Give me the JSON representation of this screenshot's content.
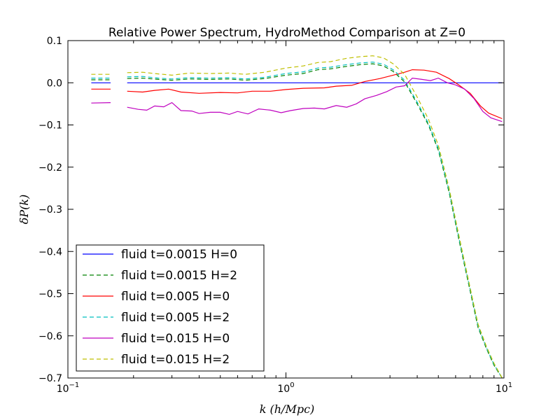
{
  "chart_data": {
    "type": "line",
    "title": "Relative Power Spectrum, HydroMethod Comparison at Z=0",
    "xlabel": "k (h/Mpc)",
    "ylabel": "δP(k)",
    "xscale": "log",
    "xlim": [
      0.1,
      10
    ],
    "ylim": [
      -0.7,
      0.1
    ],
    "x_ticks": [
      {
        "value": 0.1,
        "base": "10",
        "exp": "−1"
      },
      {
        "value": 1,
        "base": "10",
        "exp": "0"
      },
      {
        "value": 10,
        "base": "10",
        "exp": "1"
      }
    ],
    "y_ticks": [
      {
        "value": 0.1,
        "label": "0.1"
      },
      {
        "value": 0.0,
        "label": "0.0"
      },
      {
        "value": -0.1,
        "label": "−0.1"
      },
      {
        "value": -0.2,
        "label": "−0.2"
      },
      {
        "value": -0.3,
        "label": "−0.3"
      },
      {
        "value": -0.4,
        "label": "−0.4"
      },
      {
        "value": -0.5,
        "label": "−0.5"
      },
      {
        "value": -0.6,
        "label": "−0.6"
      },
      {
        "value": -0.7,
        "label": "−0.7"
      }
    ],
    "grid": false,
    "legend_position": "lower-left",
    "series": [
      {
        "name": "fluid t=0.0015 H=0",
        "color": "#0000ff",
        "dash": "solid",
        "segments": [
          [
            [
              0.128,
              0.0
            ],
            [
              0.157,
              0.0
            ]
          ],
          [
            [
              0.187,
              0.0
            ],
            [
              0.5,
              0.0
            ],
            [
              1.0,
              0.0
            ],
            [
              2.0,
              0.0
            ],
            [
              4.0,
              0.0
            ],
            [
              7.0,
              0.0
            ],
            [
              9.8,
              0.0
            ]
          ]
        ]
      },
      {
        "name": "fluid t=0.0015 H=2",
        "color": "#008000",
        "dash": "dashed",
        "segments": [
          [
            [
              0.128,
              0.007
            ],
            [
              0.157,
              0.007
            ]
          ],
          [
            [
              0.187,
              0.01
            ],
            [
              0.22,
              0.011
            ],
            [
              0.26,
              0.008
            ],
            [
              0.3,
              0.006
            ],
            [
              0.36,
              0.009
            ],
            [
              0.45,
              0.008
            ],
            [
              0.55,
              0.009
            ],
            [
              0.65,
              0.006
            ],
            [
              0.8,
              0.01
            ],
            [
              1.0,
              0.018
            ],
            [
              1.2,
              0.022
            ],
            [
              1.4,
              0.031
            ],
            [
              1.6,
              0.033
            ],
            [
              1.9,
              0.039
            ],
            [
              2.2,
              0.043
            ],
            [
              2.5,
              0.045
            ],
            [
              2.8,
              0.04
            ],
            [
              3.1,
              0.027
            ],
            [
              3.5,
              0.002
            ],
            [
              4.0,
              -0.05
            ],
            [
              4.5,
              -0.1
            ],
            [
              5.0,
              -0.16
            ],
            [
              5.6,
              -0.26
            ],
            [
              6.2,
              -0.37
            ],
            [
              6.9,
              -0.48
            ],
            [
              7.6,
              -0.58
            ],
            [
              8.3,
              -0.63
            ],
            [
              9.0,
              -0.67
            ],
            [
              9.8,
              -0.7
            ]
          ]
        ]
      },
      {
        "name": "fluid t=0.005 H=0",
        "color": "#ff0000",
        "dash": "solid",
        "segments": [
          [
            [
              0.128,
              -0.015
            ],
            [
              0.157,
              -0.015
            ]
          ],
          [
            [
              0.187,
              -0.02
            ],
            [
              0.22,
              -0.022
            ],
            [
              0.25,
              -0.018
            ],
            [
              0.29,
              -0.015
            ],
            [
              0.33,
              -0.022
            ],
            [
              0.4,
              -0.025
            ],
            [
              0.5,
              -0.023
            ],
            [
              0.6,
              -0.024
            ],
            [
              0.7,
              -0.02
            ],
            [
              0.85,
              -0.02
            ],
            [
              1.0,
              -0.016
            ],
            [
              1.2,
              -0.013
            ],
            [
              1.5,
              -0.012
            ],
            [
              1.7,
              -0.008
            ],
            [
              2.0,
              -0.006
            ],
            [
              2.3,
              0.003
            ],
            [
              2.7,
              0.01
            ],
            [
              3.1,
              0.018
            ],
            [
              3.5,
              0.025
            ],
            [
              3.8,
              0.031
            ],
            [
              4.3,
              0.03
            ],
            [
              4.9,
              0.025
            ],
            [
              5.6,
              0.01
            ],
            [
              6.2,
              -0.005
            ],
            [
              7.0,
              -0.025
            ],
            [
              7.8,
              -0.055
            ],
            [
              8.5,
              -0.072
            ],
            [
              9.8,
              -0.085
            ]
          ]
        ]
      },
      {
        "name": "fluid t=0.005 H=2",
        "color": "#00bfbf",
        "dash": "dashed",
        "segments": [
          [
            [
              0.128,
              0.011
            ],
            [
              0.157,
              0.011
            ]
          ],
          [
            [
              0.187,
              0.014
            ],
            [
              0.22,
              0.015
            ],
            [
              0.26,
              0.011
            ],
            [
              0.3,
              0.009
            ],
            [
              0.36,
              0.012
            ],
            [
              0.45,
              0.011
            ],
            [
              0.55,
              0.012
            ],
            [
              0.65,
              0.009
            ],
            [
              0.8,
              0.013
            ],
            [
              1.0,
              0.022
            ],
            [
              1.2,
              0.026
            ],
            [
              1.4,
              0.035
            ],
            [
              1.6,
              0.037
            ],
            [
              1.9,
              0.043
            ],
            [
              2.2,
              0.047
            ],
            [
              2.5,
              0.049
            ],
            [
              2.8,
              0.044
            ],
            [
              3.1,
              0.031
            ],
            [
              3.5,
              0.006
            ],
            [
              4.0,
              -0.046
            ],
            [
              4.5,
              -0.096
            ],
            [
              5.0,
              -0.156
            ],
            [
              5.6,
              -0.256
            ],
            [
              6.2,
              -0.366
            ],
            [
              6.9,
              -0.476
            ],
            [
              7.6,
              -0.576
            ],
            [
              8.3,
              -0.628
            ],
            [
              9.0,
              -0.668
            ],
            [
              9.8,
              -0.7
            ]
          ]
        ]
      },
      {
        "name": "fluid t=0.015 H=0",
        "color": "#bf00bf",
        "dash": "solid",
        "segments": [
          [
            [
              0.128,
              -0.048
            ],
            [
              0.157,
              -0.047
            ]
          ],
          [
            [
              0.187,
              -0.058
            ],
            [
              0.21,
              -0.063
            ],
            [
              0.23,
              -0.065
            ],
            [
              0.25,
              -0.055
            ],
            [
              0.275,
              -0.057
            ],
            [
              0.3,
              -0.047
            ],
            [
              0.33,
              -0.066
            ],
            [
              0.37,
              -0.067
            ],
            [
              0.4,
              -0.073
            ],
            [
              0.45,
              -0.07
            ],
            [
              0.5,
              -0.07
            ],
            [
              0.55,
              -0.075
            ],
            [
              0.6,
              -0.068
            ],
            [
              0.67,
              -0.074
            ],
            [
              0.75,
              -0.062
            ],
            [
              0.85,
              -0.065
            ],
            [
              0.95,
              -0.071
            ],
            [
              1.05,
              -0.066
            ],
            [
              1.2,
              -0.061
            ],
            [
              1.35,
              -0.06
            ],
            [
              1.5,
              -0.062
            ],
            [
              1.7,
              -0.054
            ],
            [
              1.9,
              -0.058
            ],
            [
              2.1,
              -0.05
            ],
            [
              2.3,
              -0.038
            ],
            [
              2.6,
              -0.03
            ],
            [
              2.9,
              -0.021
            ],
            [
              3.2,
              -0.01
            ],
            [
              3.5,
              -0.007
            ],
            [
              3.8,
              0.011
            ],
            [
              4.2,
              0.008
            ],
            [
              4.6,
              0.005
            ],
            [
              5.0,
              0.011
            ],
            [
              5.5,
              0.0
            ],
            [
              6.0,
              -0.005
            ],
            [
              6.6,
              -0.015
            ],
            [
              7.3,
              -0.038
            ],
            [
              8.0,
              -0.068
            ],
            [
              8.7,
              -0.083
            ],
            [
              9.8,
              -0.092
            ]
          ]
        ]
      },
      {
        "name": "fluid t=0.015 H=2",
        "color": "#bfbf00",
        "dash": "dashed",
        "segments": [
          [
            [
              0.128,
              0.02
            ],
            [
              0.157,
              0.02
            ]
          ],
          [
            [
              0.187,
              0.024
            ],
            [
              0.22,
              0.025
            ],
            [
              0.26,
              0.021
            ],
            [
              0.3,
              0.018
            ],
            [
              0.36,
              0.023
            ],
            [
              0.45,
              0.022
            ],
            [
              0.55,
              0.023
            ],
            [
              0.65,
              0.02
            ],
            [
              0.8,
              0.025
            ],
            [
              1.0,
              0.035
            ],
            [
              1.2,
              0.04
            ],
            [
              1.4,
              0.048
            ],
            [
              1.6,
              0.05
            ],
            [
              1.9,
              0.058
            ],
            [
              2.2,
              0.062
            ],
            [
              2.5,
              0.064
            ],
            [
              2.8,
              0.059
            ],
            [
              3.1,
              0.045
            ],
            [
              3.5,
              0.02
            ],
            [
              4.0,
              -0.034
            ],
            [
              4.5,
              -0.086
            ],
            [
              5.0,
              -0.148
            ],
            [
              5.6,
              -0.25
            ],
            [
              6.2,
              -0.36
            ],
            [
              6.9,
              -0.472
            ],
            [
              7.6,
              -0.572
            ],
            [
              8.3,
              -0.625
            ],
            [
              9.0,
              -0.665
            ],
            [
              9.8,
              -0.7
            ]
          ]
        ]
      }
    ]
  }
}
